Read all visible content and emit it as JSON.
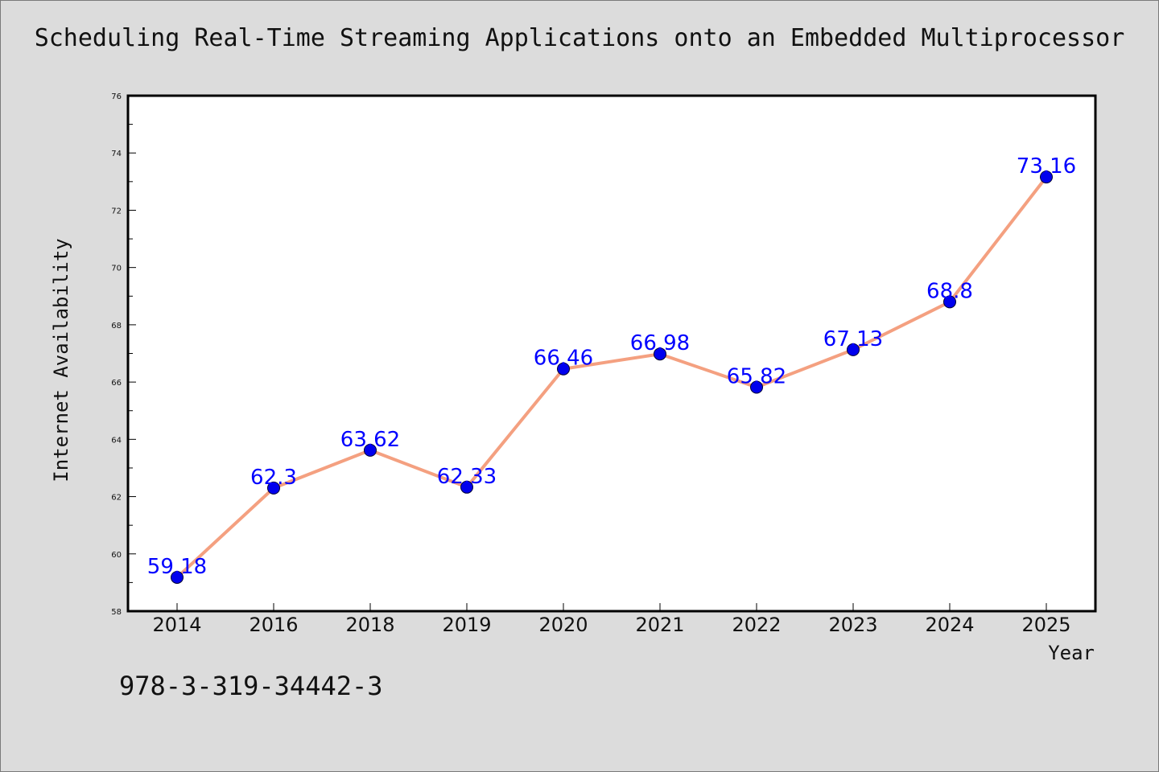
{
  "chart_data": {
    "type": "line",
    "title": "Scheduling Real-Time Streaming Applications onto an Embedded Multiprocessor",
    "xlabel": "Year",
    "ylabel": "Internet Availability",
    "categories": [
      "2014",
      "2016",
      "2018",
      "2019",
      "2020",
      "2021",
      "2022",
      "2023",
      "2024",
      "2025"
    ],
    "series": [
      {
        "values": [
          59.18,
          62.3,
          63.62,
          62.33,
          66.46,
          66.98,
          65.82,
          67.13,
          68.8,
          73.16
        ],
        "data_labels": [
          "59.18",
          "62.3",
          "63.62",
          "62.33",
          "66.46",
          "66.98",
          "65.82",
          "67.13",
          "68.8",
          "73.16"
        ],
        "line_color": "#f4a080",
        "marker_color": "#0000ee"
      }
    ],
    "ylim": [
      58,
      76
    ],
    "yticks": [
      "58",
      "60",
      "62",
      "64",
      "66",
      "68",
      "70",
      "72",
      "74",
      "76"
    ],
    "grid": false,
    "legend": "none",
    "label_color": "#0000ff"
  },
  "footer": {
    "code": "978-3-319-34442-3"
  },
  "colors": {
    "background": "#dcdcdc",
    "plot_background": "#ffffff"
  }
}
